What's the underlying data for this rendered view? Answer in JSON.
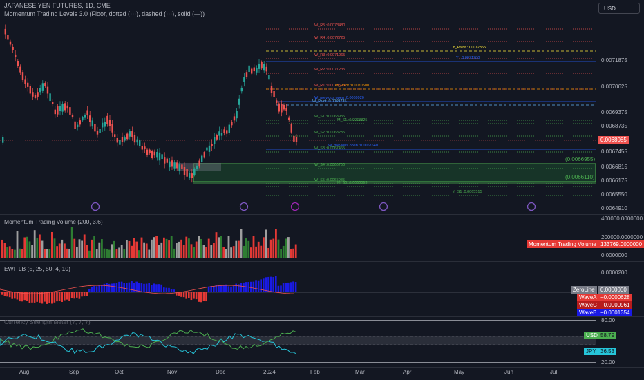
{
  "header": {
    "symbol": "JAPANESE YEN FUTURES, 1D, CME",
    "indicator": "Momentum Trading Levels 3.0 (Floor, dotted (⋯), dashed (⋯), solid (—))",
    "currency_button": "USD"
  },
  "price_axis": [
    "0.0071875",
    "0.0070625",
    "0.0069375",
    "0.0068735",
    "0.0067455",
    "0.0066815",
    "0.0066175",
    "0.0065550",
    "0.0064910"
  ],
  "current_price": "0.0068085",
  "level_labels": [
    "W_R5 :0.0073480",
    "W_R4 :0.0072725",
    "Y_Pivot :0.0072355",
    "W_R3 :0.0071965",
    "Y_:0.0071780",
    "W_R2 :0.0071235",
    "W_R1 :0.0070500",
    "M_Pivot :0.0070500",
    "W_previous open :0.0069920",
    "W_Pivot :0.0069735",
    "W_S1 :0.0068985",
    "M_S1 :0.0068825",
    "W_S2 :0.0068235",
    "W_previous open :0.0067640",
    "W_S3 :0.0067465",
    "W_S4 :0.0066735",
    "W_S5 :0.0065985",
    "M_S3 :0.0065895",
    "Y_S1 :0.0065515"
  ],
  "zone_labels": [
    "(0.0066955)",
    "(0.0066110)"
  ],
  "volume_pane": {
    "title": "Momentum Trading Volume (200, 3.6)",
    "axis": [
      "400000.0000000",
      "200000.0000000",
      "0.0000000"
    ],
    "badge_label": "Momentum Trading Volume",
    "badge_value": "133769.0000000"
  },
  "ewi_pane": {
    "title": "EWI_LB (5, 25, 50, 4, 10)",
    "axis_top": "0.0000200",
    "zero_label": "ZeroLine",
    "zero_value": "0.0000000",
    "waveA_label": "WaveA",
    "waveA_value": "−0.0000628",
    "waveC_label": "WaveC",
    "waveC_value": "−0.0000961",
    "waveB_label": "WaveB",
    "waveB_value": "−0.0001354"
  },
  "strength_pane": {
    "title": "Currency Strength Meter (7, 7, 7)",
    "axis_top": "80.00",
    "axis_bottom": "20.00",
    "usd_label": "USD",
    "usd_value": "58.79",
    "jpy_label": "JPY",
    "jpy_value": "36.53"
  },
  "x_axis": [
    "Aug",
    "Sep",
    "Oct",
    "Nov",
    "Dec",
    "2024",
    "Feb",
    "Mar",
    "Apr",
    "May",
    "Jun",
    "Jul"
  ],
  "colors": {
    "up": "#26a69a",
    "down": "#ef5350",
    "bg": "#131722"
  }
}
